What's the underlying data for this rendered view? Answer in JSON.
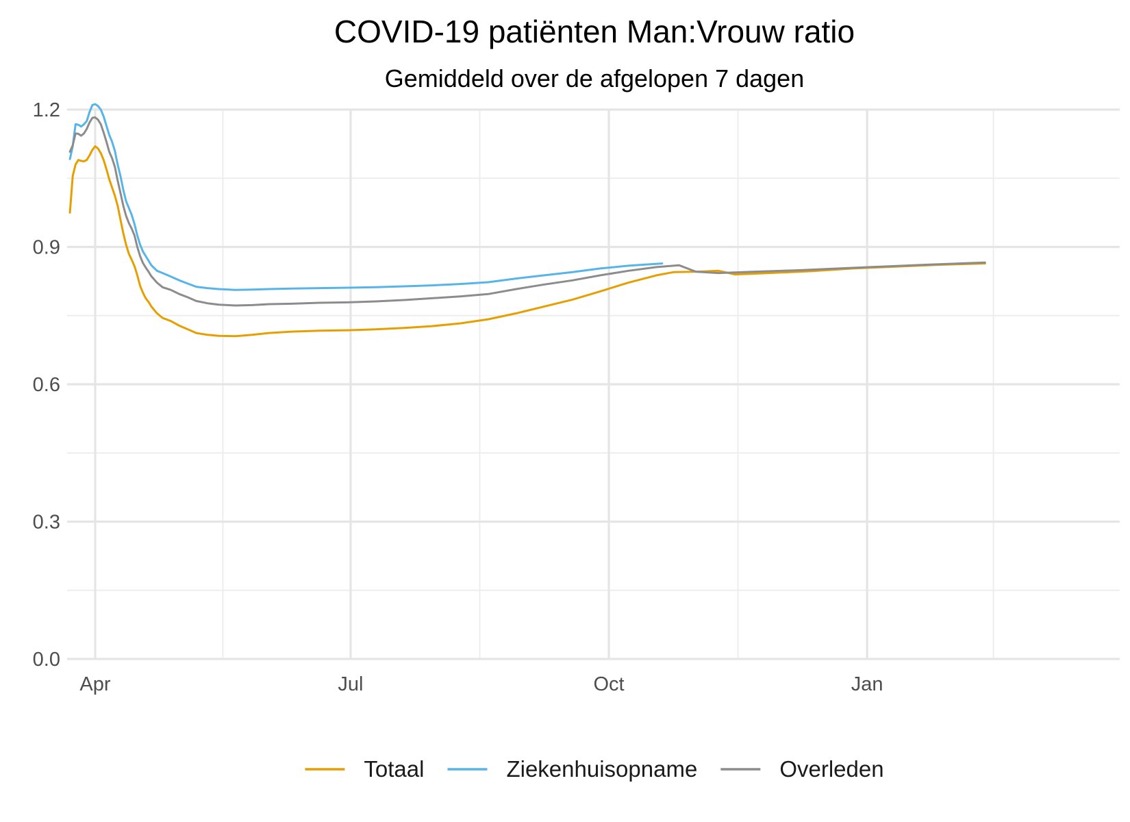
{
  "chart_data": {
    "type": "line",
    "title": "COVID-19 patiënten Man:Vrouw ratio",
    "subtitle": "Gemiddeld over de afgelopen 7 dagen",
    "xlabel": "",
    "ylabel": "",
    "x_unit": "days since 1 April",
    "xlim": [
      -10,
      365
    ],
    "ylim": [
      0,
      1.2
    ],
    "x_ticks": [
      {
        "value": 0,
        "label": "Apr"
      },
      {
        "value": 91,
        "label": "Jul"
      },
      {
        "value": 183,
        "label": "Oct"
      },
      {
        "value": 275,
        "label": "Jan"
      }
    ],
    "x_minor_ticks": [
      -46,
      45.5,
      137,
      229,
      320
    ],
    "y_ticks": [
      {
        "value": 0.0,
        "label": "0.0"
      },
      {
        "value": 0.3,
        "label": "0.3"
      },
      {
        "value": 0.6,
        "label": "0.6"
      },
      {
        "value": 0.9,
        "label": "0.9"
      },
      {
        "value": 1.2,
        "label": "1.2"
      }
    ],
    "y_minor_ticks": [
      0.15,
      0.45,
      0.75,
      1.05
    ],
    "grid": true,
    "legend_position": "bottom",
    "series": [
      {
        "name": "Totaal",
        "color": "#E69F00",
        "points": [
          [
            -9,
            0.975
          ],
          [
            -8,
            1.055
          ],
          [
            -7,
            1.08
          ],
          [
            -6,
            1.09
          ],
          [
            -5,
            1.088
          ],
          [
            -4,
            1.087
          ],
          [
            -3,
            1.09
          ],
          [
            -2,
            1.1
          ],
          [
            -1,
            1.112
          ],
          [
            0,
            1.12
          ],
          [
            1,
            1.115
          ],
          [
            2,
            1.105
          ],
          [
            3,
            1.09
          ],
          [
            4,
            1.07
          ],
          [
            5,
            1.048
          ],
          [
            6,
            1.03
          ],
          [
            7,
            1.012
          ],
          [
            8,
            0.99
          ],
          [
            9,
            0.96
          ],
          [
            10,
            0.93
          ],
          [
            11,
            0.905
          ],
          [
            12,
            0.885
          ],
          [
            13,
            0.872
          ],
          [
            14,
            0.858
          ],
          [
            15,
            0.838
          ],
          [
            16,
            0.815
          ],
          [
            17,
            0.8
          ],
          [
            18,
            0.788
          ],
          [
            19,
            0.78
          ],
          [
            20,
            0.77
          ],
          [
            22,
            0.755
          ],
          [
            24,
            0.745
          ],
          [
            27,
            0.738
          ],
          [
            30,
            0.728
          ],
          [
            33,
            0.72
          ],
          [
            36,
            0.712
          ],
          [
            40,
            0.708
          ],
          [
            44,
            0.706
          ],
          [
            50,
            0.705
          ],
          [
            56,
            0.708
          ],
          [
            62,
            0.712
          ],
          [
            70,
            0.715
          ],
          [
            80,
            0.717
          ],
          [
            90,
            0.718
          ],
          [
            100,
            0.72
          ],
          [
            110,
            0.723
          ],
          [
            120,
            0.727
          ],
          [
            130,
            0.733
          ],
          [
            140,
            0.742
          ],
          [
            150,
            0.755
          ],
          [
            160,
            0.77
          ],
          [
            170,
            0.785
          ],
          [
            180,
            0.803
          ],
          [
            190,
            0.822
          ],
          [
            200,
            0.838
          ],
          [
            206,
            0.845
          ],
          [
            215,
            0.846
          ],
          [
            222,
            0.848
          ],
          [
            228,
            0.84
          ],
          [
            240,
            0.843
          ],
          [
            255,
            0.847
          ],
          [
            270,
            0.853
          ],
          [
            285,
            0.857
          ],
          [
            300,
            0.861
          ],
          [
            317,
            0.864
          ]
        ]
      },
      {
        "name": "Ziekenhuisopname",
        "color": "#56B4E9",
        "points": [
          [
            -9,
            1.092
          ],
          [
            -8,
            1.12
          ],
          [
            -7,
            1.168
          ],
          [
            -6,
            1.167
          ],
          [
            -5,
            1.163
          ],
          [
            -4,
            1.168
          ],
          [
            -3,
            1.175
          ],
          [
            -2,
            1.195
          ],
          [
            -1,
            1.21
          ],
          [
            0,
            1.212
          ],
          [
            1,
            1.208
          ],
          [
            2,
            1.2
          ],
          [
            3,
            1.185
          ],
          [
            4,
            1.165
          ],
          [
            5,
            1.145
          ],
          [
            6,
            1.13
          ],
          [
            7,
            1.11
          ],
          [
            8,
            1.08
          ],
          [
            9,
            1.055
          ],
          [
            10,
            1.025
          ],
          [
            11,
            1.0
          ],
          [
            12,
            0.985
          ],
          [
            13,
            0.97
          ],
          [
            14,
            0.95
          ],
          [
            15,
            0.925
          ],
          [
            16,
            0.905
          ],
          [
            17,
            0.89
          ],
          [
            18,
            0.88
          ],
          [
            19,
            0.87
          ],
          [
            20,
            0.86
          ],
          [
            22,
            0.848
          ],
          [
            24,
            0.843
          ],
          [
            27,
            0.835
          ],
          [
            30,
            0.827
          ],
          [
            33,
            0.82
          ],
          [
            36,
            0.813
          ],
          [
            40,
            0.81
          ],
          [
            44,
            0.808
          ],
          [
            50,
            0.806
          ],
          [
            56,
            0.807
          ],
          [
            62,
            0.808
          ],
          [
            70,
            0.809
          ],
          [
            80,
            0.81
          ],
          [
            90,
            0.811
          ],
          [
            100,
            0.812
          ],
          [
            110,
            0.814
          ],
          [
            120,
            0.816
          ],
          [
            130,
            0.819
          ],
          [
            140,
            0.823
          ],
          [
            150,
            0.831
          ],
          [
            160,
            0.838
          ],
          [
            170,
            0.845
          ],
          [
            180,
            0.853
          ],
          [
            190,
            0.859
          ],
          [
            202,
            0.864
          ]
        ]
      },
      {
        "name": "Overleden",
        "color": "#8C8C8C",
        "points": [
          [
            -9,
            1.108
          ],
          [
            -8,
            1.122
          ],
          [
            -7,
            1.148
          ],
          [
            -6,
            1.147
          ],
          [
            -5,
            1.143
          ],
          [
            -4,
            1.148
          ],
          [
            -3,
            1.158
          ],
          [
            -2,
            1.172
          ],
          [
            -1,
            1.182
          ],
          [
            0,
            1.183
          ],
          [
            1,
            1.178
          ],
          [
            2,
            1.168
          ],
          [
            3,
            1.15
          ],
          [
            4,
            1.13
          ],
          [
            5,
            1.108
          ],
          [
            6,
            1.094
          ],
          [
            7,
            1.075
          ],
          [
            8,
            1.045
          ],
          [
            9,
            1.018
          ],
          [
            10,
            0.99
          ],
          [
            11,
            0.968
          ],
          [
            12,
            0.952
          ],
          [
            13,
            0.94
          ],
          [
            14,
            0.925
          ],
          [
            15,
            0.9
          ],
          [
            16,
            0.88
          ],
          [
            17,
            0.865
          ],
          [
            18,
            0.855
          ],
          [
            19,
            0.846
          ],
          [
            20,
            0.836
          ],
          [
            22,
            0.822
          ],
          [
            24,
            0.812
          ],
          [
            27,
            0.806
          ],
          [
            30,
            0.797
          ],
          [
            33,
            0.79
          ],
          [
            36,
            0.782
          ],
          [
            40,
            0.777
          ],
          [
            44,
            0.774
          ],
          [
            50,
            0.772
          ],
          [
            56,
            0.773
          ],
          [
            62,
            0.775
          ],
          [
            70,
            0.776
          ],
          [
            80,
            0.778
          ],
          [
            90,
            0.779
          ],
          [
            100,
            0.781
          ],
          [
            110,
            0.784
          ],
          [
            120,
            0.788
          ],
          [
            130,
            0.792
          ],
          [
            140,
            0.797
          ],
          [
            150,
            0.808
          ],
          [
            160,
            0.818
          ],
          [
            170,
            0.827
          ],
          [
            180,
            0.838
          ],
          [
            190,
            0.848
          ],
          [
            200,
            0.856
          ],
          [
            208,
            0.86
          ],
          [
            214,
            0.846
          ],
          [
            222,
            0.843
          ],
          [
            235,
            0.846
          ],
          [
            250,
            0.849
          ],
          [
            265,
            0.853
          ],
          [
            280,
            0.857
          ],
          [
            295,
            0.861
          ],
          [
            317,
            0.866
          ]
        ]
      }
    ]
  }
}
